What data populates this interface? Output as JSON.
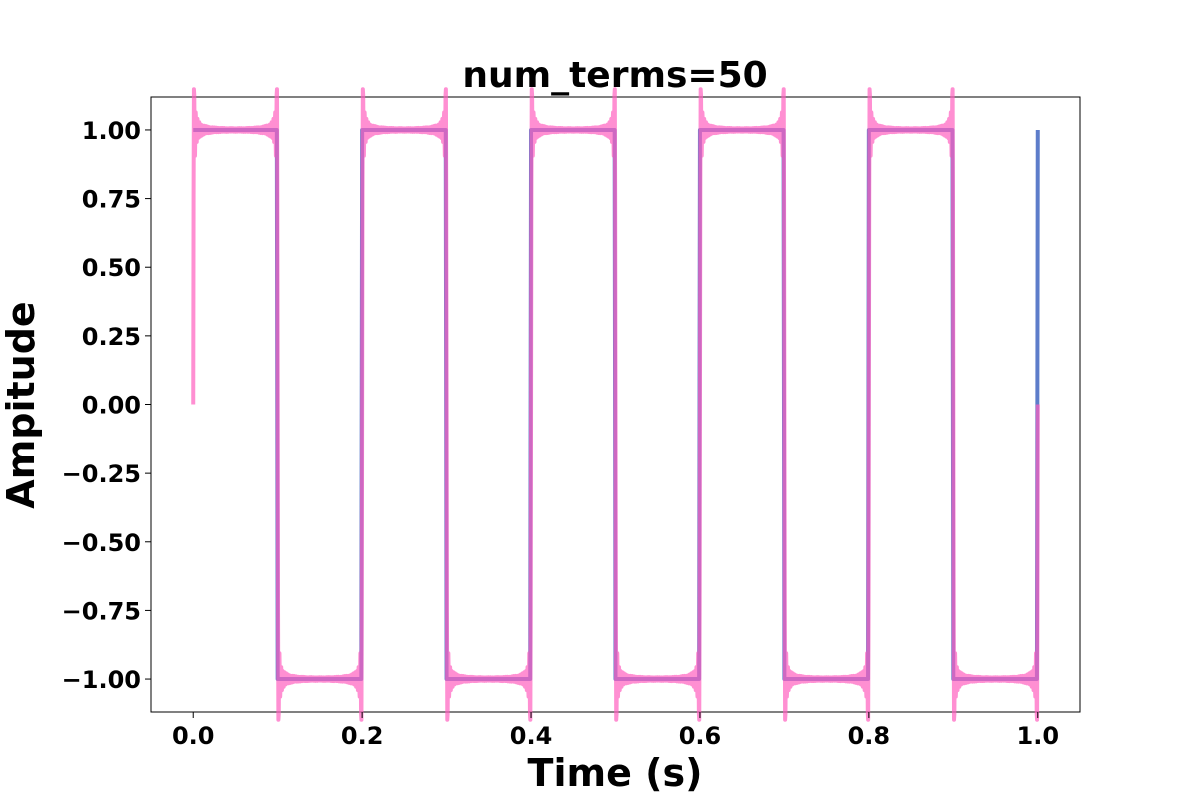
{
  "chart_data": {
    "type": "line",
    "title": "num_terms=50",
    "xlabel": "Time (s)",
    "ylabel": "Ampitude",
    "xlim": [
      -0.05,
      1.05
    ],
    "ylim": [
      -1.12,
      1.12
    ],
    "x_ticks": [
      0.0,
      0.2,
      0.4,
      0.6,
      0.8,
      1.0
    ],
    "x_tick_labels": [
      "0.0",
      "0.2",
      "0.4",
      "0.6",
      "0.8",
      "1.0"
    ],
    "y_ticks": [
      1.0,
      0.75,
      0.5,
      0.25,
      0.0,
      -0.25,
      -0.5,
      -0.75,
      -1.0
    ],
    "y_tick_labels": [
      "1.00",
      "0.75",
      "0.50",
      "0.25",
      "0.00",
      "−0.25",
      "−0.50",
      "−0.75",
      "−1.00"
    ],
    "grid": false,
    "series": [
      {
        "color": "#4b6fc4",
        "opacity": 0.9,
        "kind": "square_wave",
        "frequency": 5,
        "amplitude": 1,
        "x_start": 0.0,
        "x_end": 1.0
      },
      {
        "color": "#ff5fbf",
        "opacity": 0.7,
        "kind": "fourier_square_approximation",
        "num_terms": 50,
        "frequency": 5,
        "x_start": 0.0,
        "x_end": 1.0
      }
    ]
  }
}
